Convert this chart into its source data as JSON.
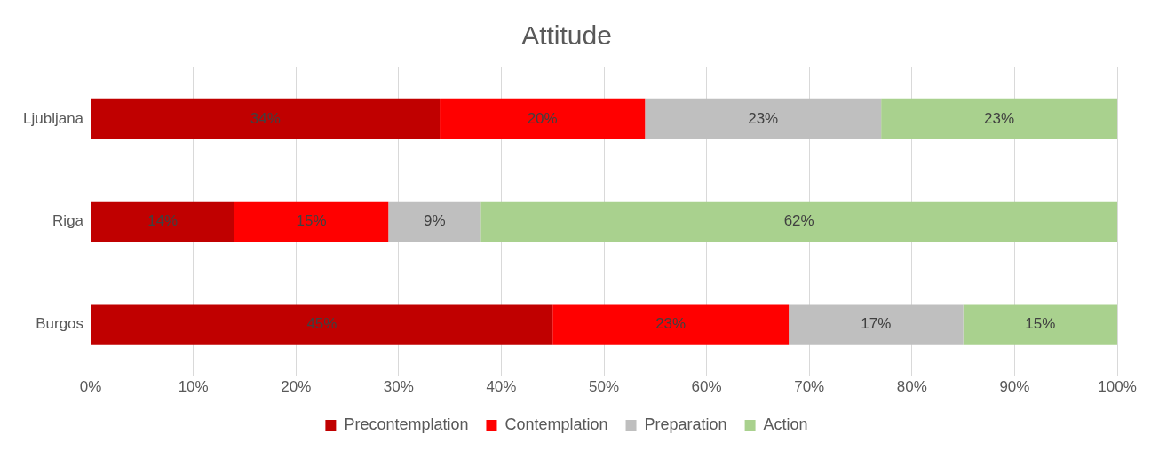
{
  "chart_data": {
    "type": "bar",
    "title": "Attitude",
    "orientation": "horizontal",
    "stacked": true,
    "categories": [
      "Ljubljana",
      "Riga",
      "Burgos"
    ],
    "series": [
      {
        "name": "Precontemplation",
        "color": "#c00000",
        "values": [
          34,
          14,
          45
        ],
        "value_labels": [
          "34%",
          "14%",
          "45%"
        ]
      },
      {
        "name": "Contemplation",
        "color": "#ff0000",
        "values": [
          20,
          15,
          23
        ],
        "value_labels": [
          "20%",
          "15%",
          "23%"
        ]
      },
      {
        "name": "Preparation",
        "color": "#bfbfbf",
        "values": [
          23,
          9,
          17
        ],
        "value_labels": [
          "23%",
          "9%",
          "17%"
        ]
      },
      {
        "name": "Action",
        "color": "#a9d18e",
        "values": [
          23,
          62,
          15
        ],
        "value_labels": [
          "23%",
          "62%",
          "15%"
        ]
      }
    ],
    "xlim": [
      0,
      100
    ],
    "xticks": [
      {
        "value": 0,
        "label": "0%"
      },
      {
        "value": 10,
        "label": "10%"
      },
      {
        "value": 20,
        "label": "20%"
      },
      {
        "value": 30,
        "label": "30%"
      },
      {
        "value": 40,
        "label": "40%"
      },
      {
        "value": 50,
        "label": "50%"
      },
      {
        "value": 60,
        "label": "60%"
      },
      {
        "value": 70,
        "label": "70%"
      },
      {
        "value": 80,
        "label": "80%"
      },
      {
        "value": 90,
        "label": "90%"
      },
      {
        "value": 100,
        "label": "100%"
      }
    ],
    "grid": "x",
    "legend": "bottom"
  }
}
